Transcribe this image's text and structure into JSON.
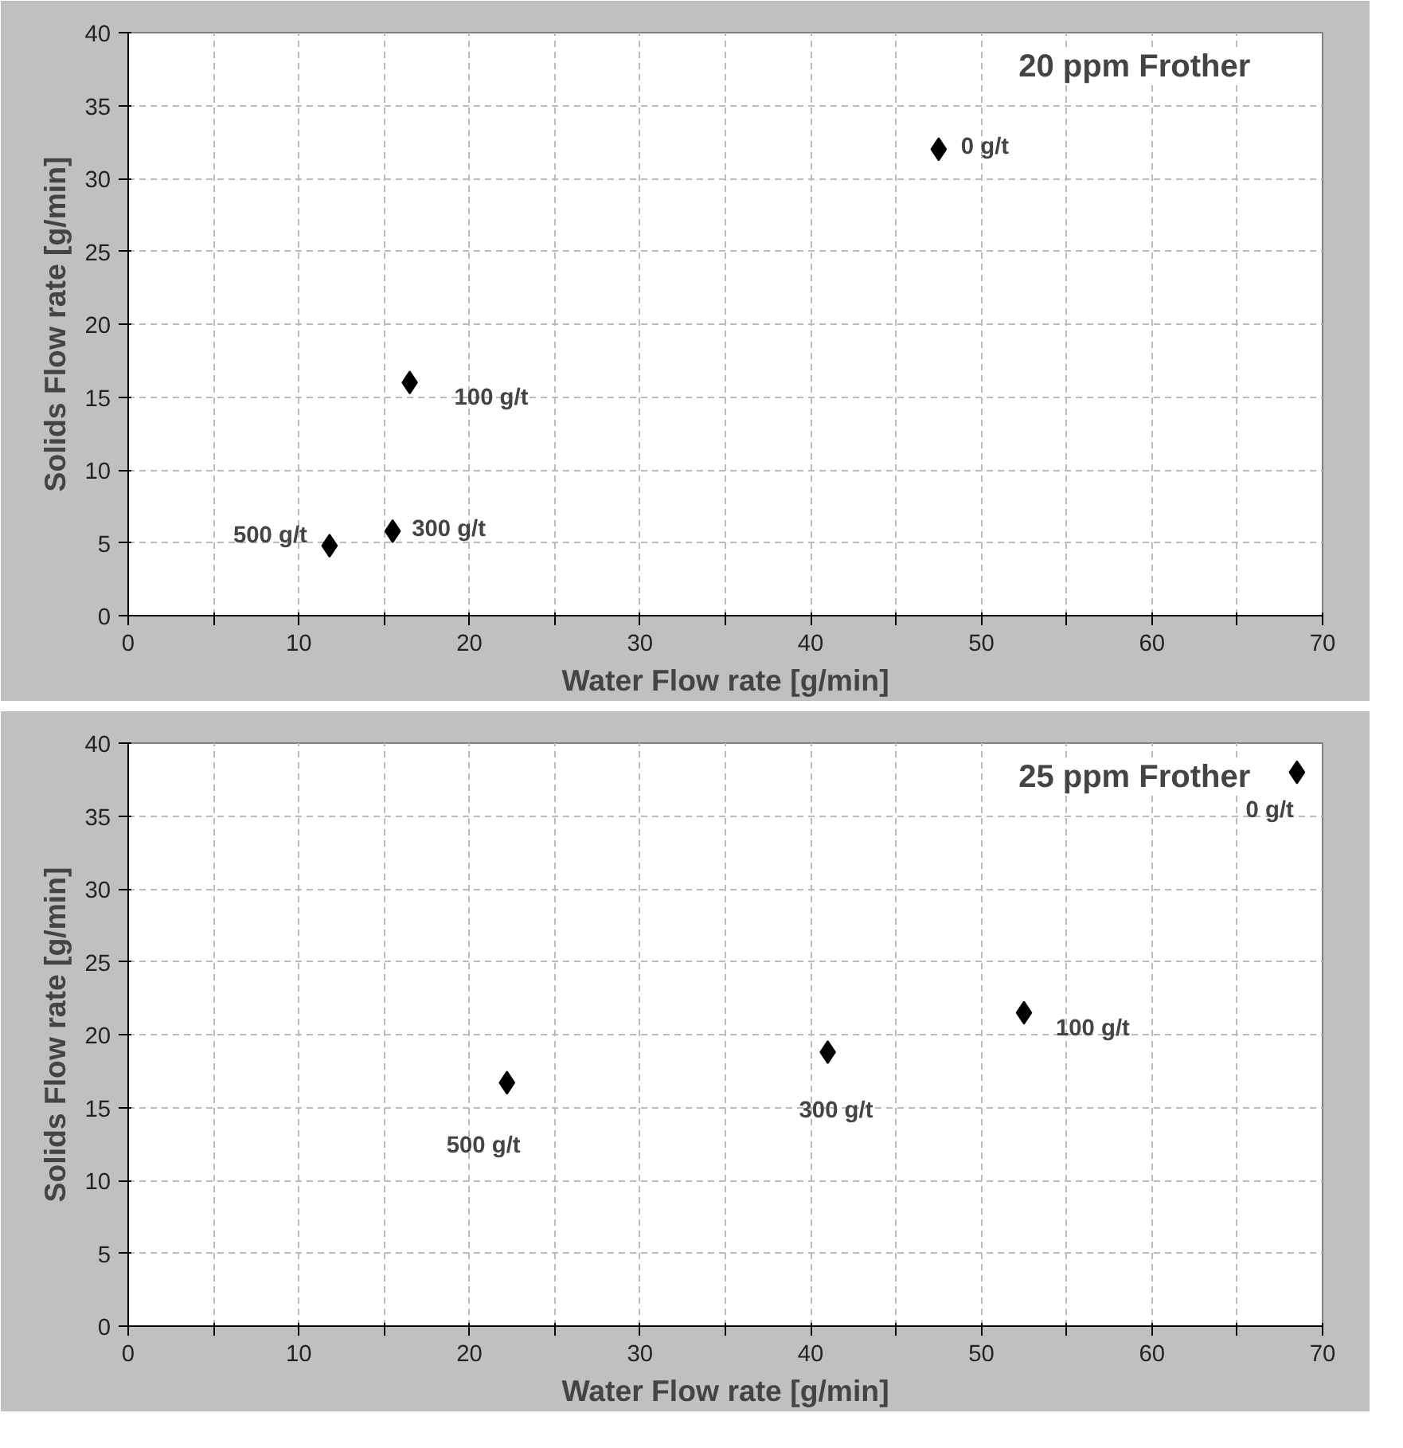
{
  "chart_data": [
    {
      "type": "scatter",
      "title": "20 ppm Frother",
      "xlabel": "Water Flow rate [g/min]",
      "ylabel": "Solids Flow rate [g/min]",
      "series": [
        {
          "color": "#000000",
          "x": [
            47.5,
            16.5,
            15.5,
            11.8
          ],
          "values": [
            32,
            16,
            5.8,
            4.8
          ]
        }
      ],
      "marker": "diamond",
      "grid": true,
      "xlim": [
        0,
        70
      ],
      "ylim": [
        0,
        40
      ],
      "xticks": [
        0,
        {
          "value": 5,
          "label": null
        },
        10,
        {
          "value": 15,
          "label": null
        },
        20,
        {
          "value": 25,
          "label": null
        },
        30,
        {
          "value": 35,
          "label": null
        },
        40,
        {
          "value": 45,
          "label": null
        },
        50,
        {
          "value": 55,
          "label": null
        },
        60,
        {
          "value": 65,
          "label": null
        },
        70
      ],
      "yticks": [
        0,
        5,
        10,
        15,
        20,
        25,
        30,
        35,
        40
      ],
      "annotations": [
        {
          "text": "0 g/t",
          "x": 47.5,
          "y": 32
        },
        {
          "text": "100 g/t",
          "x": 16.5,
          "y": 16
        },
        {
          "text": "300 g/t",
          "x": 15.5,
          "y": 5.8
        },
        {
          "text": "500 g/t",
          "x": 11.8,
          "y": 4.8
        }
      ]
    },
    {
      "type": "scatter",
      "title": "25 ppm Frother",
      "xlabel": "Water Flow rate [g/min]",
      "ylabel": "Solids Flow rate [g/min]",
      "series": [
        {
          "color": "#000000",
          "x": [
            68.5,
            52.5,
            41,
            22.2
          ],
          "values": [
            38,
            21.5,
            18.8,
            16.7
          ]
        }
      ],
      "marker": "diamond",
      "grid": true,
      "xlim": [
        0,
        70
      ],
      "ylim": [
        0,
        40
      ],
      "xticks": [
        0,
        {
          "value": 5,
          "label": null
        },
        10,
        {
          "value": 15,
          "label": null
        },
        20,
        {
          "value": 25,
          "label": null
        },
        30,
        {
          "value": 35,
          "label": null
        },
        40,
        {
          "value": 45,
          "label": null
        },
        50,
        {
          "value": 55,
          "label": null
        },
        60,
        {
          "value": 65,
          "label": null
        },
        70
      ],
      "yticks": [
        0,
        5,
        10,
        15,
        20,
        25,
        30,
        35,
        40
      ],
      "annotations": [
        {
          "text": "0 g/t",
          "x": 68.5,
          "y": 38
        },
        {
          "text": "100 g/t",
          "x": 52.5,
          "y": 21.5
        },
        {
          "text": "300 g/t",
          "x": 41,
          "y": 18.8
        },
        {
          "text": "500 g/t",
          "x": 22.2,
          "y": 16.7
        }
      ]
    }
  ]
}
